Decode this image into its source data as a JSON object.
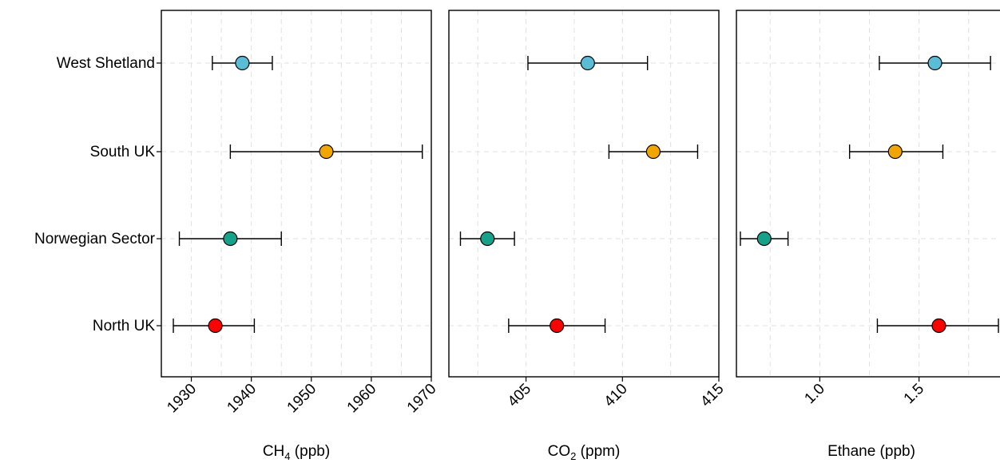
{
  "chart_data": {
    "type": "scatter",
    "subtype": "dot-with-error-bars",
    "categories": [
      "West Shetland",
      "South UK",
      "Norwegian Sector",
      "North UK"
    ],
    "category_colors": [
      "#5bbcd6",
      "#f0a500",
      "#17a08a",
      "#ff0000"
    ],
    "grid": true,
    "panels": [
      {
        "xlabel": {
          "main": "CH",
          "sub": "4",
          "unit": " (ppb)"
        },
        "xlim": [
          1925,
          1970
        ],
        "ticks": [
          1930,
          1940,
          1950,
          1960,
          1970
        ],
        "tick_labels": [
          "1930",
          "1940",
          "1950",
          "1960",
          "1970"
        ],
        "values": [
          {
            "category": "West Shetland",
            "mean": 1938.5,
            "low": 1933.5,
            "high": 1943.5
          },
          {
            "category": "South UK",
            "mean": 1952.5,
            "low": 1936.5,
            "high": 1968.5
          },
          {
            "category": "Norwegian Sector",
            "mean": 1936.5,
            "low": 1928.0,
            "high": 1945.0
          },
          {
            "category": "North UK",
            "mean": 1934.0,
            "low": 1927.0,
            "high": 1940.5
          }
        ]
      },
      {
        "xlabel": {
          "main": "CO",
          "sub": "2",
          "unit": " (ppm)"
        },
        "xlim": [
          401.0,
          415.0
        ],
        "ticks": [
          405,
          410,
          415
        ],
        "tick_labels": [
          "405",
          "410",
          "415"
        ],
        "values": [
          {
            "category": "West Shetland",
            "mean": 408.2,
            "low": 405.1,
            "high": 411.3
          },
          {
            "category": "South UK",
            "mean": 411.6,
            "low": 409.3,
            "high": 413.9
          },
          {
            "category": "Norwegian Sector",
            "mean": 403.0,
            "low": 401.6,
            "high": 404.4
          },
          {
            "category": "North UK",
            "mean": 406.6,
            "low": 404.1,
            "high": 409.1
          }
        ]
      },
      {
        "xlabel": {
          "main": "Ethane (ppb)",
          "sub": "",
          "unit": ""
        },
        "xlim": [
          0.58,
          1.94
        ],
        "ticks": [
          1.0,
          1.5
        ],
        "tick_labels": [
          "1.0",
          "1.5"
        ],
        "values": [
          {
            "category": "West Shetland",
            "mean": 1.58,
            "low": 1.3,
            "high": 1.86
          },
          {
            "category": "South UK",
            "mean": 1.38,
            "low": 1.15,
            "high": 1.62
          },
          {
            "category": "Norwegian Sector",
            "mean": 0.72,
            "low": 0.6,
            "high": 0.84
          },
          {
            "category": "North UK",
            "mean": 1.6,
            "low": 1.29,
            "high": 1.9
          }
        ]
      }
    ]
  }
}
